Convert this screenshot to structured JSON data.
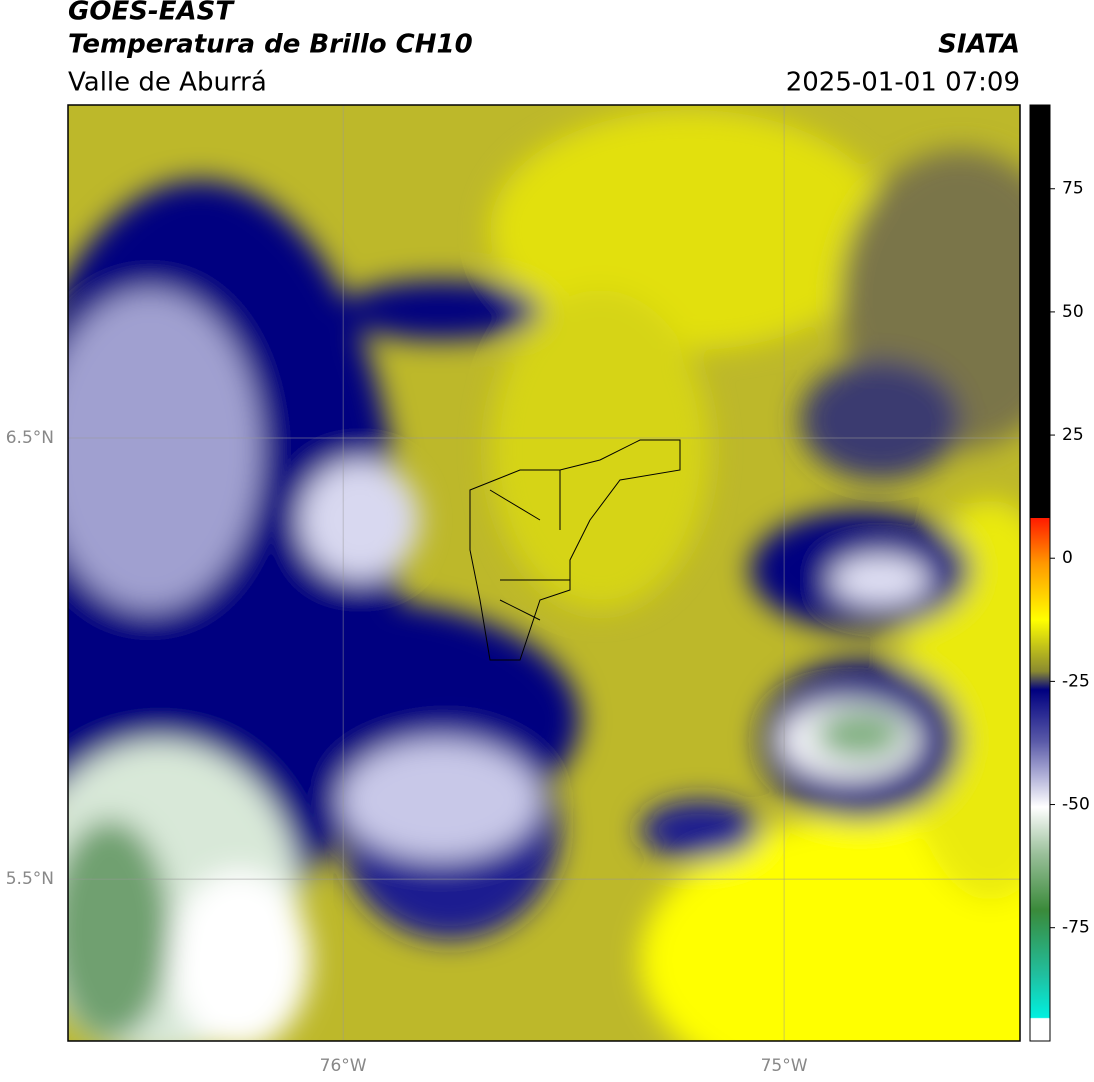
{
  "header": {
    "title": "GOES-EAST",
    "subtitle": "Temperatura de Brillo CH10",
    "region": "Valle de Aburrá",
    "source": "SIATA",
    "datetime": "2025-01-01 07:09"
  },
  "map": {
    "xlim": [
      -76.624,
      -74.465
    ],
    "ylim": [
      5.133,
      7.255
    ],
    "xticks": [
      {
        "value": -76,
        "label": "76°W"
      },
      {
        "value": -75,
        "label": "75°W"
      }
    ],
    "yticks": [
      {
        "value": 6.5,
        "label": "6.5°N"
      },
      {
        "value": 5.5,
        "label": "5.5°N"
      }
    ],
    "grid": true
  },
  "colorbar": {
    "lim": [
      -98,
      92
    ],
    "ticks": [
      75,
      50,
      25,
      0,
      -25,
      -50,
      -75
    ]
  }
}
